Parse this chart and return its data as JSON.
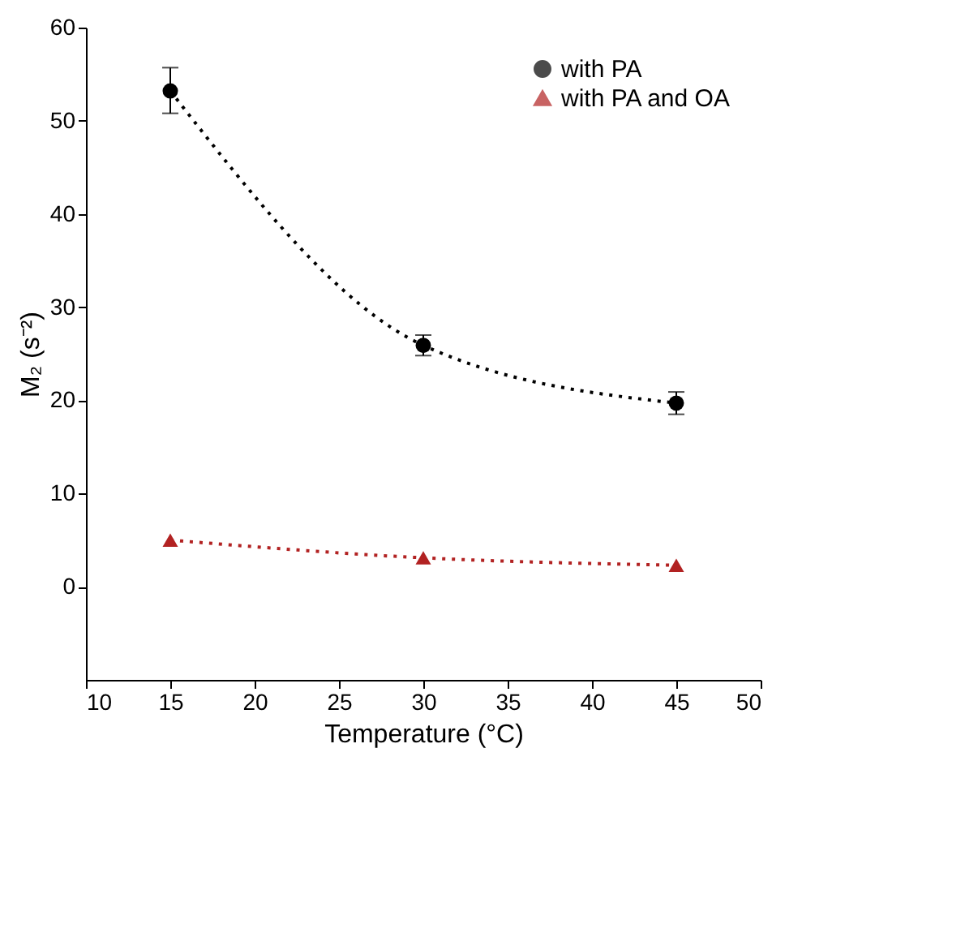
{
  "chart_data": {
    "type": "line",
    "xlabel": "Temperature (°C)",
    "ylabel": "M₂ (s⁻²)",
    "x": [
      15,
      30,
      45
    ],
    "series": [
      {
        "name": "with PA",
        "color": "#000000",
        "values": [
          53.2,
          25.9,
          19.7
        ],
        "marker": "circle",
        "errors": [
          [
            50.8,
            55.7
          ],
          [
            24.8,
            27.0
          ],
          [
            18.5,
            20.9
          ]
        ]
      },
      {
        "name": "with PA and OA",
        "color": "#b22222",
        "values": [
          5.0,
          3.1,
          2.3
        ],
        "marker": "triangle"
      }
    ],
    "line_style": "dotted",
    "xlim": [
      10,
      50
    ],
    "xticks": [
      10,
      15,
      20,
      25,
      30,
      35,
      40,
      45,
      50
    ],
    "ylim": [
      -10,
      60
    ],
    "yticks": [
      0,
      10,
      20,
      30,
      40,
      50,
      60
    ],
    "grid": false,
    "legend": "top right"
  }
}
